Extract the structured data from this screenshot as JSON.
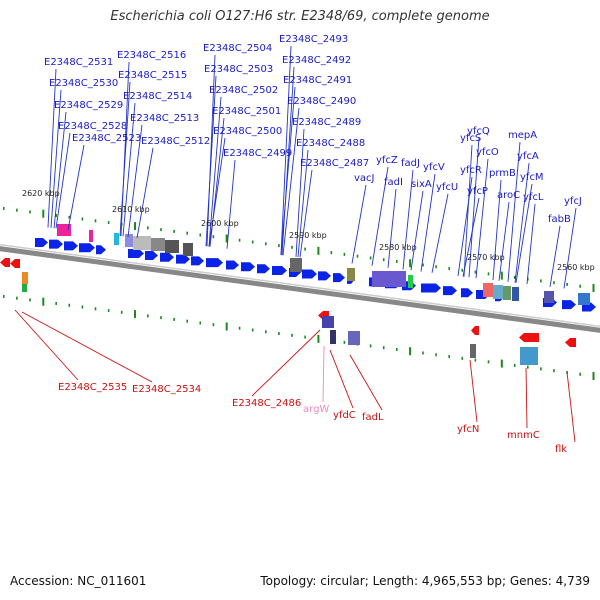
{
  "title": "Escherichia coli O127:H6 str. E2348/69, complete genome",
  "footer": {
    "accession_label": "Accession:",
    "accession": "NC_011601",
    "topology_label": "Topology:",
    "topology": "circular",
    "length_label": "Length:",
    "length": "4,965,553 bp",
    "genes_label": "Genes:",
    "genes": "4,739"
  },
  "colors": {
    "forward": "#0a23e6",
    "reverse": "#ee1111",
    "label_forward": "#1a1acc",
    "label_reverse": "#cc1111",
    "label_trna": "#ee88bb",
    "backbone": "#777777",
    "tick": "#1a8a1a"
  },
  "scale_labels": [
    "2620 kbp",
    "2610 kbp",
    "2600 kbp",
    "2590 kbp",
    "2580 kbp",
    "2570 kbp",
    "2560 kbp"
  ],
  "top_labels": [
    "E2348C_2531",
    "E2348C_2530",
    "E2348C_2529",
    "E2348C_2528",
    "E2348C_2523",
    "E2348C_2516",
    "E2348C_2515",
    "E2348C_2514",
    "E2348C_2513",
    "E2348C_2512",
    "E2348C_2504",
    "E2348C_2503",
    "E2348C_2502",
    "E2348C_2501",
    "E2348C_2500",
    "E2348C_2499",
    "E2348C_2493",
    "E2348C_2492",
    "E2348C_2491",
    "E2348C_2490",
    "E2348C_2489",
    "E2348C_2488",
    "E2348C_2487",
    "vacJ",
    "yfcZ",
    "fadI",
    "fadJ",
    "sixA",
    "yfcV",
    "yfcU",
    "yfcS",
    "yfcQ",
    "yfcO",
    "yfcR",
    "yfcP",
    "prmB",
    "aroC",
    "mepA",
    "yfcA",
    "yfcM",
    "yfcL",
    "fabB",
    "yfcJ"
  ],
  "bottom_labels": [
    "E2348C_2535",
    "E2348C_2534",
    "E2348C_2486",
    "argW",
    "yfdC",
    "fadL",
    "yfcN",
    "mnmC",
    "flk"
  ]
}
